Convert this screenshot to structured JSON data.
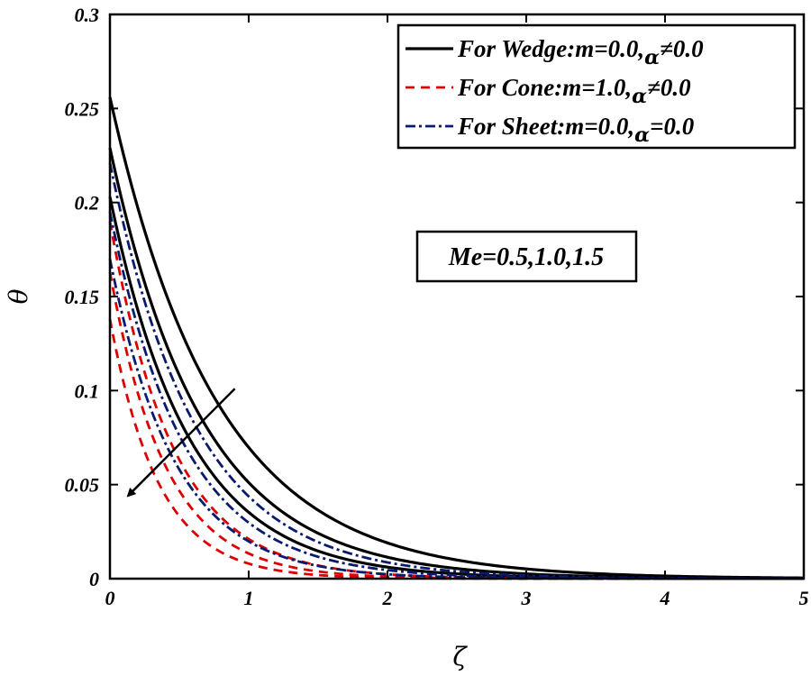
{
  "chart_data": {
    "type": "line",
    "xlabel": "ζ",
    "ylabel": "θ",
    "xlim": [
      0,
      5
    ],
    "ylim": [
      0,
      0.3
    ],
    "x_ticks": [
      "0",
      "1",
      "2",
      "3",
      "4",
      "5"
    ],
    "y_ticks": [
      "0",
      "0.05",
      "0.1",
      "0.15",
      "0.2",
      "0.25",
      "0.3"
    ],
    "legend": {
      "position": "top-right",
      "entries": [
        {
          "label": "For Wedge:m=0.0,",
          "greek": "α",
          "condition": "≠0.0",
          "color": "#000000",
          "dash": "solid"
        },
        {
          "label": "For Cone:m=1.0,",
          "greek": "α",
          "condition": "≠0.0",
          "color": "#dd0000",
          "dash": "dashed"
        },
        {
          "label": "For Sheet:m=0.0,",
          "greek": "α",
          "condition": "=0.0",
          "color": "#0a1a6e",
          "dash": "dashdot"
        }
      ]
    },
    "annotation": {
      "text": "Me=0.5,1.0,1.5",
      "arrow_from": [
        0.9,
        0.101
      ],
      "arrow_to": [
        0.13,
        0.044
      ]
    },
    "series": [
      {
        "name": "Wedge Me=0.5",
        "group": "wedge",
        "theta0": 0.256,
        "decay": 1.3
      },
      {
        "name": "Wedge Me=1.0",
        "group": "wedge",
        "theta0": 0.229,
        "decay": 1.5
      },
      {
        "name": "Wedge Me=1.5",
        "group": "wedge",
        "theta0": 0.203,
        "decay": 1.75
      },
      {
        "name": "Cone Me=0.5",
        "group": "cone",
        "theta0": 0.19,
        "decay": 2.2
      },
      {
        "name": "Cone Me=1.0",
        "group": "cone",
        "theta0": 0.163,
        "decay": 2.5
      },
      {
        "name": "Cone Me=1.5",
        "group": "cone",
        "theta0": 0.138,
        "decay": 2.85
      },
      {
        "name": "Sheet Me=0.5",
        "group": "sheet",
        "theta0": 0.221,
        "decay": 1.62
      },
      {
        "name": "Sheet Me=1.0",
        "group": "sheet",
        "theta0": 0.195,
        "decay": 1.88
      },
      {
        "name": "Sheet Me=1.5",
        "group": "sheet",
        "theta0": 0.17,
        "decay": 2.15
      }
    ]
  }
}
